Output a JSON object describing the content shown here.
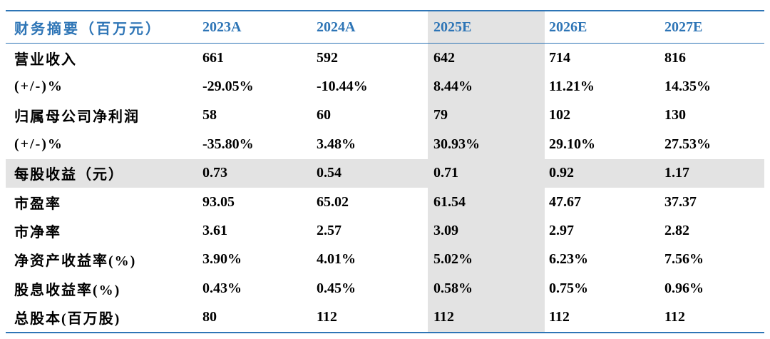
{
  "table": {
    "headers": [
      "财务摘要（百万元）",
      "2023A",
      "2024A",
      "2025E",
      "2026E",
      "2027E"
    ],
    "rows": [
      {
        "label": "营业收入",
        "values": [
          "661",
          "592",
          "642",
          "714",
          "816"
        ]
      },
      {
        "label": "(+/-)%",
        "values": [
          "-29.05%",
          "-10.44%",
          "8.44%",
          "11.21%",
          "14.35%"
        ]
      },
      {
        "label": "归属母公司净利润",
        "values": [
          "58",
          "60",
          "79",
          "102",
          "130"
        ]
      },
      {
        "label": "(+/-)%",
        "values": [
          "-35.80%",
          "3.48%",
          "30.93%",
          "29.10%",
          "27.53%"
        ]
      },
      {
        "label": "每股收益（元）",
        "values": [
          "0.73",
          "0.54",
          "0.71",
          "0.92",
          "1.17"
        ]
      },
      {
        "label": "市盈率",
        "values": [
          "93.05",
          "65.02",
          "61.54",
          "47.67",
          "37.37"
        ]
      },
      {
        "label": "市净率",
        "values": [
          "3.61",
          "2.57",
          "3.09",
          "2.97",
          "2.82"
        ]
      },
      {
        "label": "净资产收益率(%)",
        "values": [
          "3.90%",
          "4.01%",
          "5.02%",
          "6.23%",
          "7.56%"
        ]
      },
      {
        "label": "股息收益率(%)",
        "values": [
          "0.43%",
          "0.45%",
          "0.58%",
          "0.75%",
          "0.96%"
        ]
      },
      {
        "label": "总股本(百万股)",
        "values": [
          "80",
          "112",
          "112",
          "112",
          "112"
        ]
      }
    ]
  },
  "colors": {
    "header_text": "#2e75b6",
    "rule": "#2e75b6",
    "shading": "#e3e3e3"
  }
}
